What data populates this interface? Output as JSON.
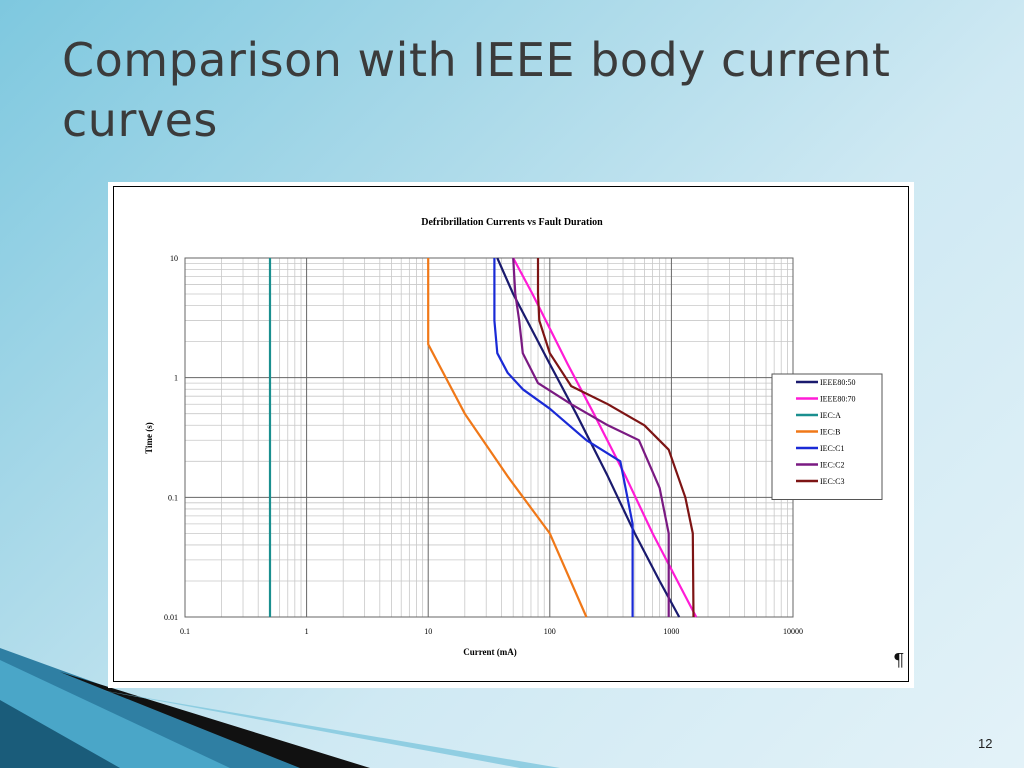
{
  "slide": {
    "title": "Comparison with IEEE body current curves",
    "number": "12",
    "pilcrow": "¶"
  },
  "chart_data": {
    "type": "line",
    "title": "Defribrillation Currents vs Fault Duration",
    "xlabel": "Current (mA)",
    "ylabel": "Time (s)",
    "xscale": "log",
    "yscale": "log",
    "xlim": [
      0.1,
      10000
    ],
    "ylim": [
      0.01,
      10
    ],
    "x_ticks": [
      "0.1",
      "1",
      "10",
      "100",
      "1000",
      "10000"
    ],
    "y_ticks": [
      "0.01",
      "0.1",
      "1",
      "10"
    ],
    "grid": true,
    "legend_position": "right",
    "series": [
      {
        "name": "IEEE80:50",
        "color": "#1a1a6e",
        "points": [
          [
            37,
            10
          ],
          [
            50,
            5
          ],
          [
            100,
            1.3
          ],
          [
            165,
            0.5
          ],
          [
            300,
            0.15
          ],
          [
            500,
            0.05
          ],
          [
            800,
            0.02
          ],
          [
            1160,
            0.01
          ]
        ]
      },
      {
        "name": "IEEE80:70",
        "color": "#ff1cd6",
        "points": [
          [
            50,
            10
          ],
          [
            72,
            5
          ],
          [
            140,
            1.3
          ],
          [
            230,
            0.5
          ],
          [
            420,
            0.15
          ],
          [
            700,
            0.05
          ],
          [
            1120,
            0.02
          ],
          [
            1600,
            0.01
          ]
        ]
      },
      {
        "name": "IEC:A",
        "color": "#1a8f8f",
        "points": [
          [
            0.5,
            10
          ],
          [
            0.5,
            0.01
          ]
        ]
      },
      {
        "name": "IEC:B",
        "color": "#f07818",
        "points": [
          [
            10,
            10
          ],
          [
            10,
            1.9
          ],
          [
            20,
            0.5
          ],
          [
            45,
            0.15
          ],
          [
            100,
            0.05
          ],
          [
            200,
            0.01
          ]
        ]
      },
      {
        "name": "IEC:C1",
        "color": "#1a2ad6",
        "points": [
          [
            35,
            10
          ],
          [
            35,
            3
          ],
          [
            37,
            1.6
          ],
          [
            45,
            1.1
          ],
          [
            60,
            0.8
          ],
          [
            100,
            0.55
          ],
          [
            200,
            0.3
          ],
          [
            380,
            0.2
          ],
          [
            480,
            0.06
          ],
          [
            480,
            0.01
          ]
        ]
      },
      {
        "name": "IEC:C2",
        "color": "#7a1a82",
        "points": [
          [
            50,
            10
          ],
          [
            52,
            5
          ],
          [
            56,
            3
          ],
          [
            60,
            1.6
          ],
          [
            80,
            0.9
          ],
          [
            150,
            0.6
          ],
          [
            300,
            0.4
          ],
          [
            540,
            0.3
          ],
          [
            800,
            0.12
          ],
          [
            950,
            0.05
          ],
          [
            950,
            0.01
          ]
        ]
      },
      {
        "name": "IEC:C3",
        "color": "#7d1414",
        "points": [
          [
            80,
            10
          ],
          [
            80,
            5
          ],
          [
            82,
            3
          ],
          [
            100,
            1.6
          ],
          [
            150,
            0.85
          ],
          [
            300,
            0.6
          ],
          [
            600,
            0.4
          ],
          [
            950,
            0.25
          ],
          [
            1300,
            0.1
          ],
          [
            1500,
            0.05
          ],
          [
            1520,
            0.01
          ]
        ]
      }
    ]
  }
}
